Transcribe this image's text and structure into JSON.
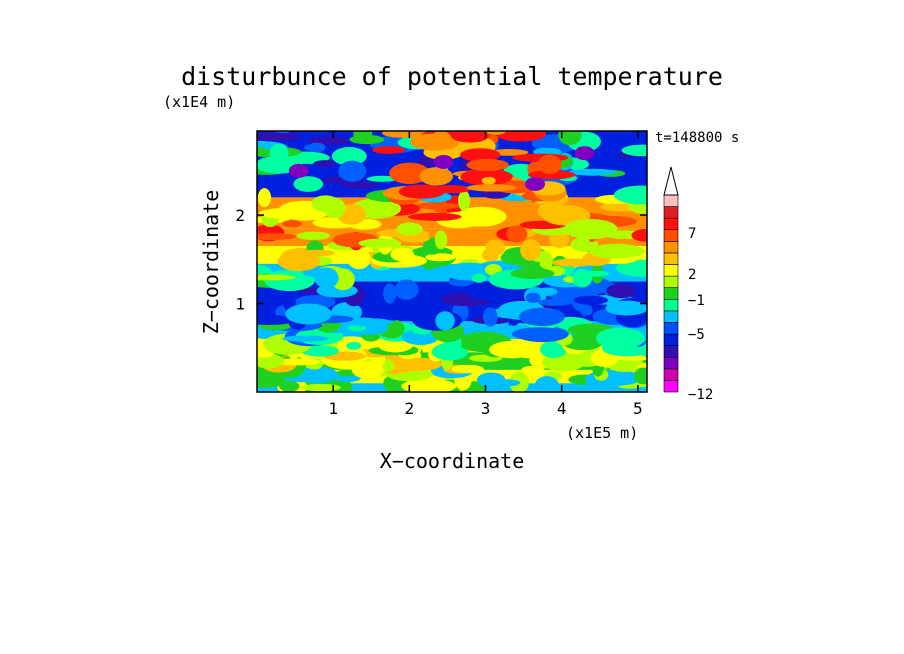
{
  "chart_data": {
    "type": "heatmap",
    "title": "disturbunce of potential temperature",
    "xlabel": "X−coordinate",
    "ylabel": "Z−coordinate",
    "x_unit": "(x1E5 m)",
    "y_unit": "(x1E4 m)",
    "time_label": "t=148800 s",
    "xlim": [
      0,
      5.12
    ],
    "ylim": [
      0,
      2.95
    ],
    "x_ticks": [
      "1",
      "2",
      "3",
      "4",
      "5"
    ],
    "y_ticks": [
      "1",
      "2"
    ],
    "colorbar_labels": [
      "7",
      "2",
      "−1",
      "−5",
      "−12"
    ],
    "colorbar_colors": [
      "#ff00ff",
      "#d000b0",
      "#8000c0",
      "#3010b0",
      "#0020e0",
      "#0050ff",
      "#00c0ff",
      "#00ff90",
      "#20d020",
      "#b0ff00",
      "#ffff00",
      "#ffc000",
      "#ff9000",
      "#ff5000",
      "#ff1010",
      "#e02020",
      "#ffc0c0"
    ],
    "field_bands": [
      {
        "z_min": 0.0,
        "z_max": 0.1,
        "level": "cyan"
      },
      {
        "z_min": 0.1,
        "z_max": 0.25,
        "level": "yellow"
      },
      {
        "z_min": 0.25,
        "z_max": 0.45,
        "level": "green"
      },
      {
        "z_min": 0.45,
        "z_max": 0.6,
        "level": "yellow"
      },
      {
        "z_min": 0.6,
        "z_max": 0.8,
        "level": "cyan"
      },
      {
        "z_min": 0.8,
        "z_max": 1.25,
        "level": "blue"
      },
      {
        "z_min": 1.25,
        "z_max": 1.45,
        "level": "cyan"
      },
      {
        "z_min": 1.45,
        "z_max": 1.65,
        "level": "yellow"
      },
      {
        "z_min": 1.65,
        "z_max": 1.85,
        "level": "orange"
      },
      {
        "z_min": 1.85,
        "z_max": 2.2,
        "level": "orange"
      },
      {
        "z_min": 2.2,
        "z_max": 2.95,
        "level": "blue"
      }
    ]
  }
}
